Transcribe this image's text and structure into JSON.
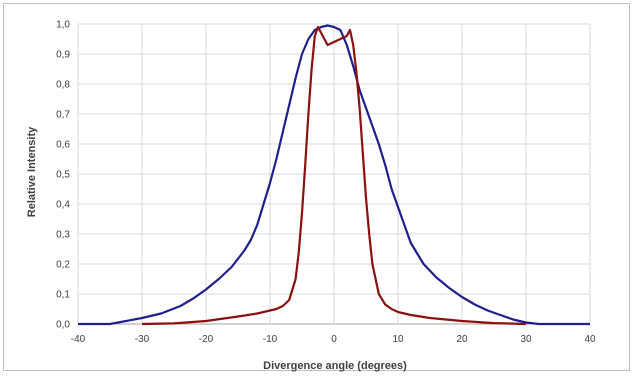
{
  "chart_data": {
    "type": "line",
    "title": "",
    "xlabel": "Divergence angle (degrees)",
    "ylabel": "Relative Intensity",
    "xlim": [
      -40,
      40
    ],
    "ylim": [
      0,
      1.0
    ],
    "x_ticks": [
      "-40",
      "-30",
      "-20",
      "-10",
      "0",
      "10",
      "20",
      "30",
      "40"
    ],
    "y_ticks": [
      "0,0",
      "0,1",
      "0,2",
      "0,3",
      "0,4",
      "0,5",
      "0,6",
      "0,7",
      "0,8",
      "0,9",
      "1,0"
    ],
    "grid": true,
    "legend": "none",
    "series": [
      {
        "color": "#1f1f8f",
        "x": [
          -40,
          -35,
          -30,
          -27,
          -24,
          -22,
          -20,
          -18,
          -16,
          -14,
          -13,
          -12,
          -11,
          -10,
          -9,
          -8,
          -7,
          -6,
          -5,
          -4,
          -3,
          -2,
          -1,
          0,
          1,
          2,
          3,
          4,
          5,
          6,
          7,
          8,
          9,
          10,
          11,
          12,
          13,
          14,
          16,
          18,
          20,
          22,
          24,
          26,
          28,
          30,
          32,
          33,
          40
        ],
        "y": [
          0.0,
          0.0,
          0.02,
          0.035,
          0.06,
          0.085,
          0.115,
          0.15,
          0.19,
          0.245,
          0.28,
          0.33,
          0.4,
          0.47,
          0.55,
          0.64,
          0.73,
          0.82,
          0.9,
          0.95,
          0.98,
          0.99,
          0.995,
          0.99,
          0.98,
          0.93,
          0.86,
          0.78,
          0.72,
          0.66,
          0.6,
          0.53,
          0.45,
          0.39,
          0.33,
          0.27,
          0.235,
          0.2,
          0.155,
          0.12,
          0.09,
          0.065,
          0.045,
          0.03,
          0.015,
          0.005,
          0.0,
          0.0,
          0.0
        ]
      },
      {
        "color": "#8b1010",
        "x": [
          -30,
          -25,
          -20,
          -15,
          -12,
          -10,
          -9,
          -8,
          -7,
          -6,
          -5.5,
          -5,
          -4.5,
          -4,
          -3.5,
          -3,
          -2.5,
          -2,
          -1,
          0,
          1,
          2,
          2.5,
          3,
          3.5,
          4,
          4.5,
          5,
          5.5,
          6,
          7,
          8,
          9,
          10,
          12,
          15,
          20,
          25,
          30
        ],
        "y": [
          0.0,
          0.002,
          0.01,
          0.025,
          0.035,
          0.045,
          0.05,
          0.06,
          0.08,
          0.15,
          0.24,
          0.37,
          0.53,
          0.7,
          0.85,
          0.96,
          0.99,
          0.97,
          0.93,
          0.94,
          0.95,
          0.96,
          0.98,
          0.93,
          0.84,
          0.72,
          0.57,
          0.42,
          0.3,
          0.2,
          0.1,
          0.065,
          0.05,
          0.04,
          0.03,
          0.02,
          0.01,
          0.003,
          0.0
        ]
      }
    ]
  }
}
